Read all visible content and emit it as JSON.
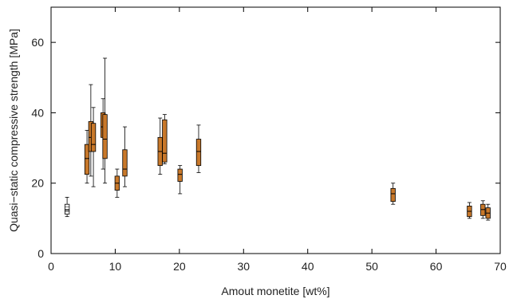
{
  "chart_data": {
    "type": "box",
    "xlabel": "Amout monetite [wt%]",
    "ylabel": "Quasi−static compressive strength [MPa]",
    "xlim": [
      0,
      70
    ],
    "ylim": [
      0,
      70
    ],
    "x_ticks": [
      0,
      10,
      20,
      30,
      40,
      50,
      60,
      70
    ],
    "y_ticks": [
      0,
      20,
      40,
      60
    ],
    "grid": false,
    "box_color": "#c8782a",
    "reference_box_color": "#ffffff",
    "boxes": [
      {
        "x": 2.5,
        "min": 10.5,
        "q1": 11.2,
        "median": 12.3,
        "q3": 14.0,
        "max": 16.0,
        "reference": true
      },
      {
        "x": 5.6,
        "min": 20.0,
        "q1": 22.5,
        "median": 27.0,
        "q3": 31.0,
        "max": 35.0
      },
      {
        "x": 6.2,
        "min": 22.0,
        "q1": 29.0,
        "median": 33.0,
        "q3": 37.5,
        "max": 48.0
      },
      {
        "x": 6.6,
        "min": 19.0,
        "q1": 29.0,
        "median": 31.0,
        "q3": 37.0,
        "max": 41.5
      },
      {
        "x": 8.1,
        "min": 24.0,
        "q1": 33.0,
        "median": 36.0,
        "q3": 40.0,
        "max": 44.0
      },
      {
        "x": 8.4,
        "min": 20.0,
        "q1": 27.0,
        "median": 32.5,
        "q3": 39.5,
        "max": 55.5
      },
      {
        "x": 10.3,
        "min": 16.0,
        "q1": 18.0,
        "median": 20.0,
        "q3": 22.0,
        "max": 24.0
      },
      {
        "x": 11.5,
        "min": 19.0,
        "q1": 22.0,
        "median": 24.0,
        "q3": 29.5,
        "max": 36.0
      },
      {
        "x": 17.0,
        "min": 22.5,
        "q1": 25.0,
        "median": 29.0,
        "q3": 33.0,
        "max": 38.5
      },
      {
        "x": 17.7,
        "min": 25.5,
        "q1": 26.0,
        "median": 28.5,
        "q3": 38.0,
        "max": 39.5
      },
      {
        "x": 20.1,
        "min": 17.0,
        "q1": 20.5,
        "median": 22.5,
        "q3": 24.0,
        "max": 25.0
      },
      {
        "x": 23.0,
        "min": 23.0,
        "q1": 25.0,
        "median": 29.0,
        "q3": 32.5,
        "max": 36.5
      },
      {
        "x": 53.3,
        "min": 14.0,
        "q1": 14.8,
        "median": 17.0,
        "q3": 18.5,
        "max": 20.0
      },
      {
        "x": 65.2,
        "min": 10.0,
        "q1": 10.5,
        "median": 12.0,
        "q3": 13.5,
        "max": 14.5
      },
      {
        "x": 67.3,
        "min": 10.0,
        "q1": 10.8,
        "median": 12.5,
        "q3": 14.0,
        "max": 15.0
      },
      {
        "x": 68.1,
        "min": 9.5,
        "q1": 10.0,
        "median": 11.5,
        "q3": 13.0,
        "max": 14.0
      }
    ]
  }
}
